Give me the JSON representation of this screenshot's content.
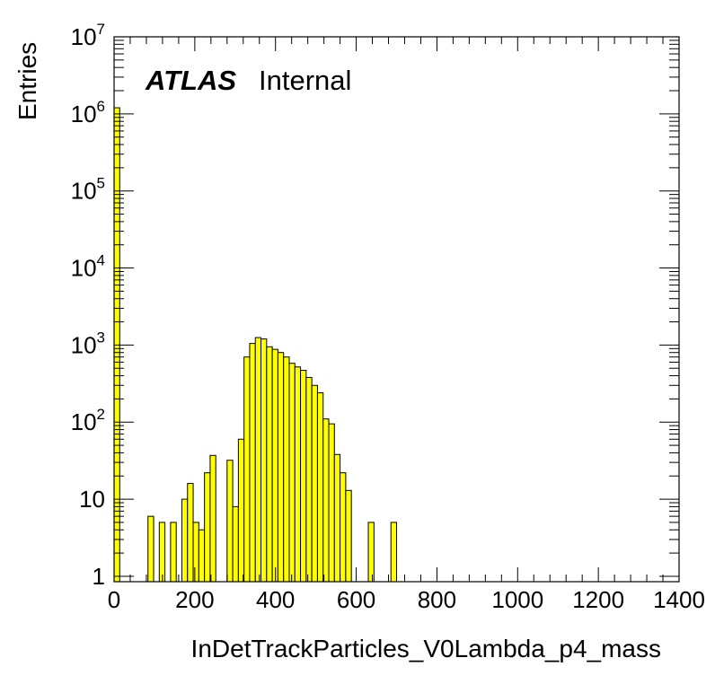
{
  "chart_data": {
    "type": "histogram",
    "title": "",
    "xlabel": "InDetTrackParticles_V0Lambda_p4_mass",
    "ylabel": "Entries",
    "xlim": [
      0,
      1400
    ],
    "ylim": [
      0.85,
      10000000
    ],
    "y_scale": "log",
    "bin_width": 14,
    "fill_color": "#ffff00",
    "line_color": "#000000",
    "grid": false,
    "x_ticks": [
      "0",
      "200",
      "400",
      "600",
      "800",
      "1000",
      "1200",
      "1400"
    ],
    "y_ticks": [
      {
        "value": 1,
        "base": "1",
        "exp": ""
      },
      {
        "value": 10,
        "base": "10",
        "exp": ""
      },
      {
        "value": 100,
        "base": "10",
        "exp": "2"
      },
      {
        "value": 1000,
        "base": "10",
        "exp": "3"
      },
      {
        "value": 10000,
        "base": "10",
        "exp": "4"
      },
      {
        "value": 100000,
        "base": "10",
        "exp": "5"
      },
      {
        "value": 1000000,
        "base": "10",
        "exp": "6"
      },
      {
        "value": 10000000,
        "base": "10",
        "exp": "7"
      }
    ],
    "bins": [
      {
        "x": 0,
        "y": 1200000
      },
      {
        "x": 84,
        "y": 6
      },
      {
        "x": 112,
        "y": 5
      },
      {
        "x": 140,
        "y": 5
      },
      {
        "x": 168,
        "y": 10
      },
      {
        "x": 182,
        "y": 16
      },
      {
        "x": 196,
        "y": 5
      },
      {
        "x": 210,
        "y": 4
      },
      {
        "x": 224,
        "y": 22
      },
      {
        "x": 238,
        "y": 37
      },
      {
        "x": 280,
        "y": 32
      },
      {
        "x": 294,
        "y": 8
      },
      {
        "x": 308,
        "y": 60
      },
      {
        "x": 322,
        "y": 700
      },
      {
        "x": 336,
        "y": 1050
      },
      {
        "x": 350,
        "y": 1250
      },
      {
        "x": 364,
        "y": 1200
      },
      {
        "x": 378,
        "y": 950
      },
      {
        "x": 392,
        "y": 880
      },
      {
        "x": 406,
        "y": 800
      },
      {
        "x": 420,
        "y": 700
      },
      {
        "x": 434,
        "y": 580
      },
      {
        "x": 448,
        "y": 520
      },
      {
        "x": 462,
        "y": 470
      },
      {
        "x": 476,
        "y": 380
      },
      {
        "x": 490,
        "y": 300
      },
      {
        "x": 504,
        "y": 240
      },
      {
        "x": 518,
        "y": 110
      },
      {
        "x": 532,
        "y": 95
      },
      {
        "x": 546,
        "y": 38
      },
      {
        "x": 560,
        "y": 22
      },
      {
        "x": 574,
        "y": 13
      },
      {
        "x": 630,
        "y": 5
      },
      {
        "x": 686,
        "y": 5
      }
    ]
  },
  "annotations": {
    "atlas": "ATLAS",
    "internal": "Internal"
  }
}
